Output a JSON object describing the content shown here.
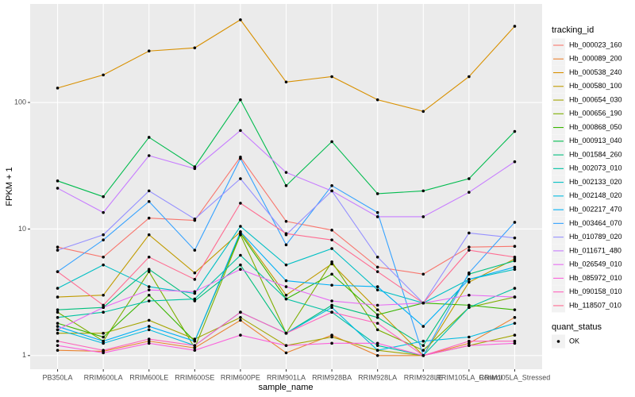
{
  "chart_data": {
    "type": "line",
    "x_label": "sample_name",
    "y_label": "FPKM + 1",
    "categories": [
      "PB350LA",
      "RRIM600LA",
      "RRIM600LE",
      "RRIM600SE",
      "RRIM600PE",
      "RRIM901LA",
      "RRIM928BA",
      "RRIM928LA",
      "RRIM928LE",
      "RRIM105LA_Control",
      "RRIM105LA_Stressed"
    ],
    "log_scale": true,
    "ylim": [
      0.78,
      600
    ],
    "yticks": [
      1,
      10,
      100
    ],
    "grid": true,
    "legend_title": "tracking_id",
    "legend_position": "right",
    "point_legend_title": "quant_status",
    "point_legend_labels": [
      "OK"
    ],
    "point_color": "#000000",
    "series": [
      {
        "name": "Hb_000023_160",
        "color": "#F8766D",
        "values": [
          7.2,
          6.0,
          12.2,
          11.7,
          37,
          11.5,
          9.8,
          5.0,
          4.4,
          7.2,
          7.3
        ]
      },
      {
        "name": "Hb_000089_200",
        "color": "#EA8331",
        "values": [
          1.1,
          1.08,
          1.3,
          1.15,
          1.9,
          1.05,
          1.45,
          1.0,
          1.0,
          1.25,
          2.0
        ]
      },
      {
        "name": "Hb_000538_240",
        "color": "#D89000",
        "values": [
          130,
          165,
          255,
          270,
          450,
          145,
          160,
          105,
          85,
          160,
          400
        ]
      },
      {
        "name": "Hb_000580_100",
        "color": "#C09B00",
        "values": [
          2.9,
          3.0,
          9.0,
          4.5,
          9.5,
          3.0,
          5.3,
          2.3,
          1.0,
          3.8,
          5.8
        ]
      },
      {
        "name": "Hb_000654_030",
        "color": "#A3A500",
        "values": [
          1.5,
          1.5,
          1.9,
          1.35,
          2.0,
          1.2,
          1.4,
          1.1,
          1.0,
          1.2,
          1.45
        ]
      },
      {
        "name": "Hb_000656_190",
        "color": "#7CAE00",
        "values": [
          2.2,
          1.3,
          4.6,
          1.15,
          9.0,
          1.5,
          5.5,
          1.6,
          1.1,
          2.4,
          2.9
        ]
      },
      {
        "name": "Hb_000868_050",
        "color": "#39B600",
        "values": [
          1.8,
          1.4,
          3.0,
          1.3,
          9.2,
          2.8,
          4.4,
          2.1,
          2.6,
          2.5,
          2.3
        ]
      },
      {
        "name": "Hb_000913_040",
        "color": "#00BB4E",
        "values": [
          24,
          18,
          53,
          31,
          105,
          22,
          49,
          19,
          20,
          25,
          59
        ]
      },
      {
        "name": "Hb_001584_260",
        "color": "#00BF7D",
        "values": [
          2.3,
          2.4,
          4.8,
          2.7,
          5.2,
          1.5,
          2.5,
          2.0,
          1.2,
          4.4,
          5.6
        ]
      },
      {
        "name": "Hb_002073_010",
        "color": "#00C1A3",
        "values": [
          2.0,
          2.2,
          2.7,
          2.8,
          6.2,
          2.8,
          2.2,
          1.2,
          1.0,
          2.4,
          3.4
        ]
      },
      {
        "name": "Hb_002133_020",
        "color": "#00BFC4",
        "values": [
          3.4,
          5.2,
          3.5,
          3.1,
          10.5,
          5.2,
          7.0,
          3.3,
          2.6,
          4.0,
          4.8
        ]
      },
      {
        "name": "Hb_002148_020",
        "color": "#00BAE0",
        "values": [
          1.6,
          1.25,
          1.6,
          1.2,
          2.2,
          1.5,
          2.4,
          1.1,
          1.3,
          1.4,
          1.8
        ]
      },
      {
        "name": "Hb_002217_470",
        "color": "#00B0F6",
        "values": [
          1.7,
          1.3,
          1.7,
          1.3,
          9.5,
          3.9,
          3.6,
          3.5,
          1.7,
          4.0,
          5.0
        ]
      },
      {
        "name": "Hb_003464_070",
        "color": "#35A2FF",
        "values": [
          4.6,
          8.2,
          16.5,
          6.8,
          36,
          7.5,
          22,
          13.5,
          1.0,
          4.5,
          11.3
        ]
      },
      {
        "name": "Hb_010789_020",
        "color": "#9590FF",
        "values": [
          6.8,
          9.0,
          20,
          12,
          25,
          9,
          20,
          6,
          2.6,
          9.3,
          8.5
        ]
      },
      {
        "name": "Hb_011671_480",
        "color": "#C77CFF",
        "values": [
          21,
          13.5,
          38,
          30,
          60,
          28,
          20,
          12.5,
          12.5,
          19.5,
          34
        ]
      },
      {
        "name": "Hb_026549_010",
        "color": "#E76BF3",
        "values": [
          1.6,
          2.4,
          3.3,
          3.2,
          4.8,
          3.5,
          2.7,
          2.5,
          2.6,
          3.0,
          2.9
        ]
      },
      {
        "name": "Hb_085972_010",
        "color": "#FA62DB",
        "values": [
          1.2,
          1.05,
          1.25,
          1.1,
          1.45,
          1.2,
          1.25,
          1.25,
          1.0,
          1.2,
          1.25
        ]
      },
      {
        "name": "Hb_090158_010",
        "color": "#FF62BC",
        "values": [
          1.3,
          1.1,
          1.35,
          1.2,
          2.2,
          1.5,
          2.2,
          1.8,
          1.0,
          1.3,
          1.3
        ]
      },
      {
        "name": "Hb_118507_010",
        "color": "#FF6C91",
        "values": [
          4.6,
          2.5,
          6.0,
          4.0,
          16,
          9.2,
          8.2,
          4.6,
          2.6,
          6.8,
          6.0
        ]
      }
    ]
  }
}
